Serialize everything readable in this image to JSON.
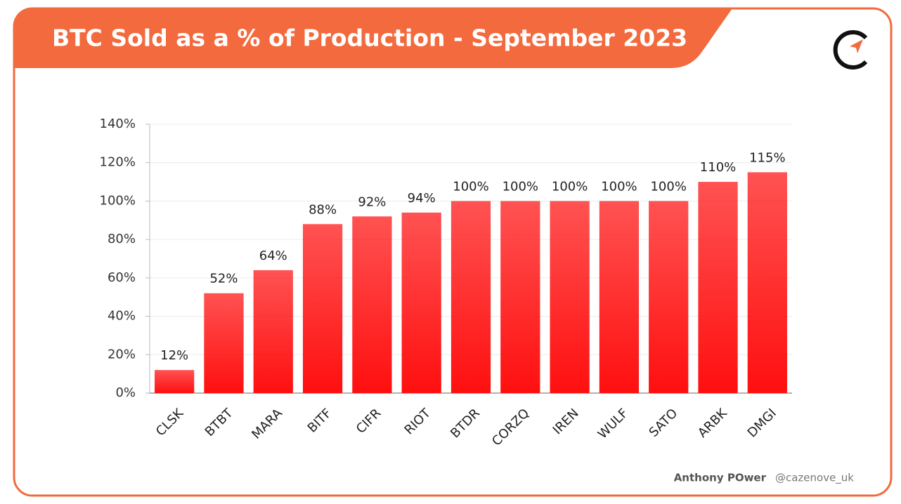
{
  "chart_data": {
    "type": "bar",
    "title": "BTC Sold as a % of Production - September 2023",
    "categories": [
      "CLSK",
      "BTBT",
      "MARA",
      "BITF",
      "CIFR",
      "RIOT",
      "BTDR",
      "CORZQ",
      "IREN",
      "WULF",
      "SATO",
      "ARBK",
      "DMGI"
    ],
    "values": [
      12,
      52,
      64,
      88,
      92,
      94,
      100,
      100,
      100,
      100,
      100,
      110,
      115
    ],
    "value_labels": [
      "12%",
      "52%",
      "64%",
      "88%",
      "92%",
      "94%",
      "100%",
      "100%",
      "100%",
      "100%",
      "100%",
      "110%",
      "115%"
    ],
    "color": "#ff0f0f",
    "ylim": [
      0,
      140
    ],
    "yticks": [
      {
        "value": 0,
        "label": "0%"
      },
      {
        "value": 20,
        "label": "20%"
      },
      {
        "value": 40,
        "label": "40%"
      },
      {
        "value": 60,
        "label": "60%"
      },
      {
        "value": 80,
        "label": "80%"
      },
      {
        "value": 100,
        "label": "100%"
      },
      {
        "value": 120,
        "label": "120%"
      },
      {
        "value": 140,
        "label": "140%"
      }
    ],
    "grid": true,
    "author": "Anthony POwer",
    "handle": "@cazenove_uk"
  }
}
